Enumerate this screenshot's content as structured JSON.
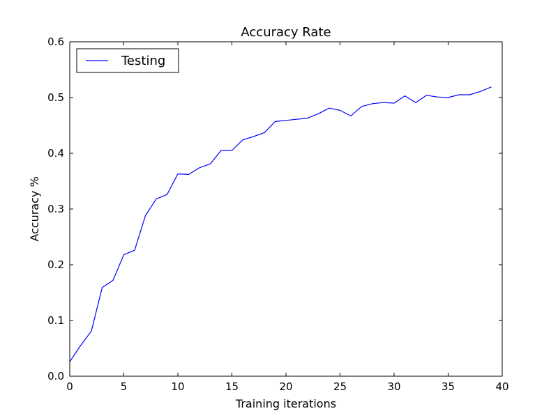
{
  "chart_data": {
    "type": "line",
    "title": "Accuracy Rate",
    "xlabel": "Training iterations",
    "ylabel": "Accuracy %",
    "xlim": [
      0,
      40
    ],
    "ylim": [
      0,
      0.6
    ],
    "x_ticks": [
      "0",
      "5",
      "10",
      "15",
      "20",
      "25",
      "30",
      "35",
      "40"
    ],
    "x_tick_values": [
      0,
      5,
      10,
      15,
      20,
      25,
      30,
      35,
      40
    ],
    "y_ticks": [
      "0.0",
      "0.1",
      "0.2",
      "0.3",
      "0.4",
      "0.5",
      "0.6"
    ],
    "y_tick_values": [
      0,
      0.1,
      0.2,
      0.3,
      0.4,
      0.5,
      0.6
    ],
    "grid": false,
    "legend_position": "top-left",
    "series": [
      {
        "name": "Testing",
        "color": "#0000ff",
        "x": [
          0,
          1,
          2,
          3,
          4,
          5,
          6,
          7,
          8,
          9,
          10,
          11,
          12,
          13,
          14,
          15,
          16,
          17,
          18,
          19,
          20,
          21,
          22,
          23,
          24,
          25,
          26,
          27,
          28,
          29,
          30,
          31,
          32,
          33,
          34,
          35,
          36,
          37,
          38,
          39
        ],
        "y": [
          0.026,
          0.055,
          0.081,
          0.159,
          0.172,
          0.218,
          0.226,
          0.288,
          0.318,
          0.326,
          0.363,
          0.362,
          0.374,
          0.381,
          0.405,
          0.405,
          0.424,
          0.43,
          0.437,
          0.457,
          0.459,
          0.461,
          0.463,
          0.471,
          0.481,
          0.477,
          0.467,
          0.484,
          0.489,
          0.491,
          0.49,
          0.503,
          0.491,
          0.504,
          0.501,
          0.5,
          0.505,
          0.505,
          0.511,
          0.519
        ]
      }
    ]
  }
}
